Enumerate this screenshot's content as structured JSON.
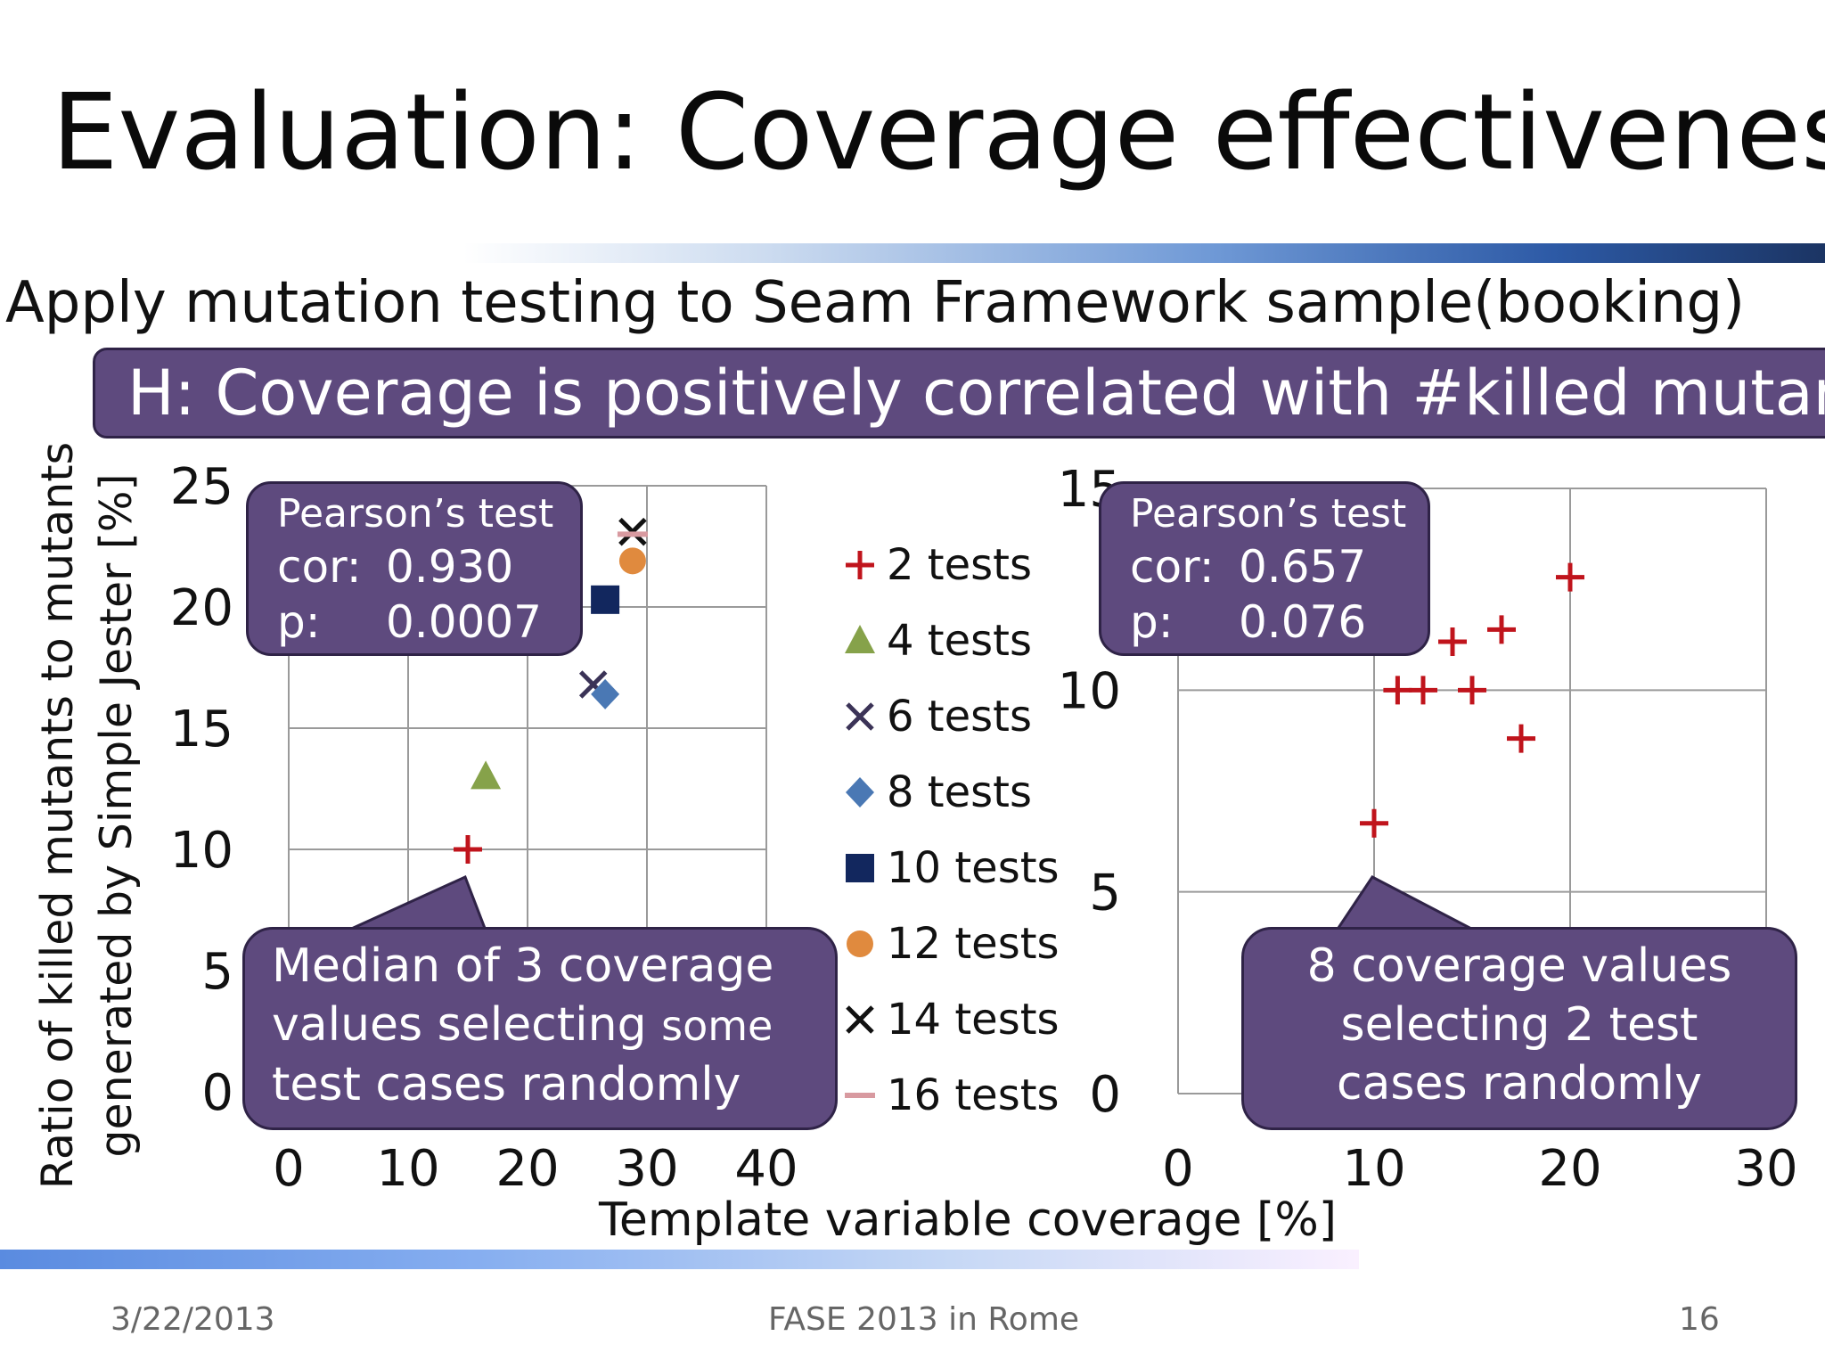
{
  "slide": {
    "title": "Evaluation: Coverage effectiveness",
    "subtitle": "Apply mutation testing to Seam Framework sample(booking)",
    "hypothesis": "H: Coverage is positively correlated with #killed mutants",
    "ylabel_line1": "Ratio of killed mutants to mutants",
    "ylabel_line2": "generated by Simple Jester [%]",
    "xlabel": "Template variable coverage [%]"
  },
  "callouts": {
    "left_stats": {
      "title": "Pearson’s test",
      "cor_key": "cor:",
      "cor_val": "0.930",
      "p_key": "p:",
      "p_val": "0.0007"
    },
    "right_stats": {
      "title": "Pearson’s test",
      "cor_key": "cor:",
      "cor_val": "0.657",
      "p_key": "p:",
      "p_val": "0.076"
    },
    "left_note": {
      "line1": "Median of 3 coverage",
      "line2a": "values selecting ",
      "line2b": "some",
      "line3": "test cases randomly"
    },
    "right_note": {
      "line1": "8 coverage values",
      "line2": "selecting 2 test",
      "line3": "cases randomly"
    }
  },
  "footer": {
    "date": "3/22/2013",
    "conference": "FASE 2013 in Rome",
    "page": "16"
  },
  "colors": {
    "callout_fill": "#5e4a7e",
    "plus": "#c0141c",
    "triangle": "#86a24a",
    "x6": "#3b3357",
    "diamond": "#4a78b4",
    "square": "#12275e",
    "circle": "#e08a3e",
    "x14": "#111111",
    "dash16": "#d89aa0"
  },
  "chart_data": [
    {
      "type": "scatter",
      "xlim": [
        0,
        40
      ],
      "ylim": [
        0,
        25
      ],
      "xticks": [
        "0",
        "10",
        "20",
        "30",
        "40"
      ],
      "yticks": [
        "0",
        "5",
        "10",
        "15",
        "20",
        "25"
      ],
      "grid": true,
      "legend_position": "right",
      "series": [
        {
          "name": "2 tests",
          "marker": "plus",
          "color": "#c0141c",
          "points": [
            [
              15,
              10
            ]
          ]
        },
        {
          "name": "4 tests",
          "marker": "triangle",
          "color": "#86a24a",
          "points": [
            [
              16.5,
              13
            ]
          ]
        },
        {
          "name": "6 tests",
          "marker": "x",
          "color": "#3b3357",
          "points": [
            [
              25.5,
              16.8
            ]
          ]
        },
        {
          "name": "8 tests",
          "marker": "diamond",
          "color": "#4a78b4",
          "points": [
            [
              26.5,
              16.4
            ]
          ]
        },
        {
          "name": "10 tests",
          "marker": "square",
          "color": "#12275e",
          "points": [
            [
              26.5,
              20.3
            ]
          ]
        },
        {
          "name": "12 tests",
          "marker": "circle",
          "color": "#e08a3e",
          "points": [
            [
              28.8,
              21.9
            ]
          ]
        },
        {
          "name": "14 tests",
          "marker": "x",
          "color": "#111111",
          "points": [
            [
              28.8,
              23.1
            ]
          ]
        },
        {
          "name": "16 tests",
          "marker": "dash",
          "color": "#d89aa0",
          "points": [
            [
              28.8,
              23.0
            ]
          ]
        }
      ]
    },
    {
      "type": "scatter",
      "xlim": [
        0,
        30
      ],
      "ylim": [
        0,
        15
      ],
      "xticks": [
        "0",
        "10",
        "20",
        "30"
      ],
      "yticks": [
        "0",
        "5",
        "10",
        "15"
      ],
      "grid": true,
      "series": [
        {
          "name": "2 tests",
          "marker": "plus",
          "color": "#c0141c",
          "points": [
            [
              10,
              6.7
            ],
            [
              11.2,
              10
            ],
            [
              12.5,
              10
            ],
            [
              14,
              11.2
            ],
            [
              15,
              10
            ],
            [
              16.5,
              11.5
            ],
            [
              17.5,
              8.8
            ],
            [
              20,
              12.8
            ]
          ]
        }
      ]
    }
  ]
}
